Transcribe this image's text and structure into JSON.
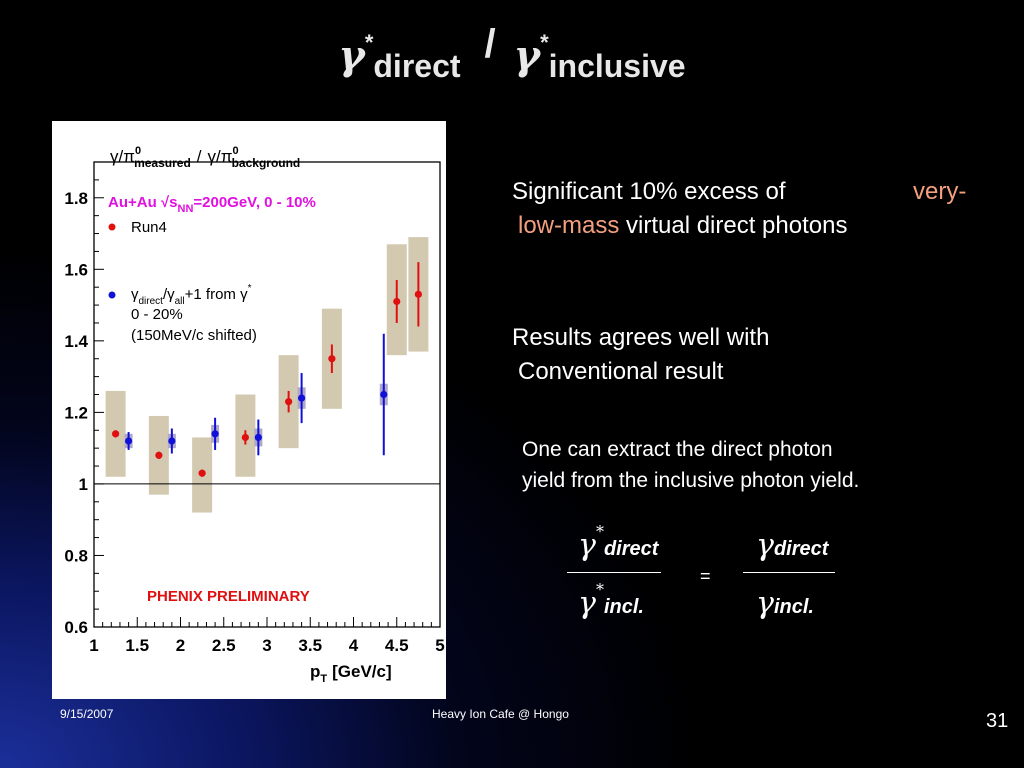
{
  "title": {
    "symbol": "γ",
    "star": "*",
    "sub1": "direct",
    "slash": "/",
    "sub2": "inclusive"
  },
  "notes": {
    "n1_part1": "Significant 10% excess of",
    "n1_hl1": "very-",
    "n1_hl2": "low-mass",
    "n1_part2": "virtual direct photons",
    "n2_line1": "Results agrees well with",
    "n2_line2": "Conventional result",
    "n3_line1": "One can extract the direct photon",
    "n3_line2": "yield from the inclusive photon yield."
  },
  "formula": {
    "gamma": "γ",
    "star": "*",
    "direct": "direct",
    "incl": "incl.",
    "equals": "="
  },
  "footer": {
    "date": "9/15/2007",
    "center": "Heavy Ion Cafe @ Hongo",
    "page": "31"
  },
  "colors": {
    "run4": "#e01010",
    "virtual": "#1010d8",
    "syst_box": "#d2c9b0",
    "label_magenta": "#e010e0",
    "preliminary": "#e01010"
  },
  "chart_data": {
    "type": "scatter",
    "title": "γ/π0measured / γ/π0background",
    "title_parts": [
      "γ/π",
      "0",
      "measured",
      "/",
      "γ/π",
      "0",
      "background"
    ],
    "xlabel": "pT [GeV/c]",
    "xlabel_parts": [
      "p",
      "T",
      "[GeV/c]"
    ],
    "ylabel": "",
    "xlim": [
      1,
      5
    ],
    "ylim": [
      0.6,
      1.9
    ],
    "x_ticks": [
      "1",
      "1.5",
      "2",
      "2.5",
      "3",
      "3.5",
      "4",
      "4.5",
      "5"
    ],
    "y_ticks": [
      "0.6",
      "0.8",
      "1",
      "1.2",
      "1.4",
      "1.6",
      "1.8"
    ],
    "reference_line": 1,
    "legend": {
      "header_parts": [
        "Au+Au ",
        "√",
        "s",
        "NN",
        "=200GeV, 0 - 10%"
      ],
      "run4_label": "Run4",
      "virtual_label_parts": [
        "γ",
        "direct",
        "/γ",
        "all",
        "+1 from γ",
        "*"
      ],
      "virtual_line2": "0 - 20%",
      "virtual_line3": "(150MeV/c shifted)"
    },
    "annotation": "PHENIX PRELIMINARY",
    "series": [
      {
        "name": "Run4",
        "x": [
          1.25,
          1.75,
          2.25,
          2.75,
          3.25,
          3.75,
          4.5,
          4.75
        ],
        "y": [
          1.14,
          1.08,
          1.03,
          1.13,
          1.23,
          1.35,
          1.51,
          1.53
        ],
        "err": [
          0.01,
          0.01,
          0.01,
          0.02,
          0.03,
          0.04,
          0.06,
          0.09
        ],
        "syst_low": [
          1.02,
          0.97,
          0.92,
          1.02,
          1.1,
          1.21,
          1.36,
          1.37
        ],
        "syst_high": [
          1.26,
          1.19,
          1.13,
          1.25,
          1.36,
          1.49,
          1.67,
          1.69
        ]
      },
      {
        "name": "γdirect/γall+1 from γ*",
        "x": [
          1.4,
          1.9,
          2.4,
          2.9,
          3.4,
          4.35
        ],
        "y": [
          1.12,
          1.12,
          1.14,
          1.13,
          1.24,
          1.25
        ],
        "err": [
          0.025,
          0.035,
          0.045,
          0.05,
          0.07,
          0.17
        ],
        "syst": [
          0.02,
          0.02,
          0.025,
          0.025,
          0.03,
          0.03
        ]
      }
    ]
  }
}
